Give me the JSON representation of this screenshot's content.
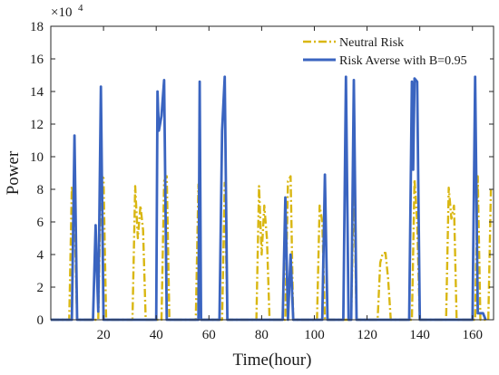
{
  "chart_data": {
    "type": "line",
    "xlabel": "Time(hour)",
    "ylabel": "Power",
    "y_multiplier_label": "×10",
    "y_multiplier_exp": "4",
    "xlim": [
      0,
      168
    ],
    "ylim": [
      0,
      18
    ],
    "xticks": [
      "20",
      "40",
      "60",
      "80",
      "100",
      "120",
      "140",
      "160"
    ],
    "yticks": [
      "0",
      "2",
      "4",
      "6",
      "8",
      "10",
      "12",
      "14",
      "16",
      "18"
    ],
    "xtick_values": [
      20,
      40,
      60,
      80,
      100,
      120,
      140,
      160
    ],
    "ytick_values": [
      0,
      2,
      4,
      6,
      8,
      10,
      12,
      14,
      16,
      18
    ],
    "grid": false,
    "legend_position": "top-right",
    "series": [
      {
        "name": "Neutral Risk",
        "color": "#d9b713",
        "style": "dash-dot",
        "points": [
          [
            0,
            0
          ],
          [
            7,
            0
          ],
          [
            8,
            8.2
          ],
          [
            9,
            6.5
          ],
          [
            10,
            0
          ],
          [
            18,
            0
          ],
          [
            19,
            8.8
          ],
          [
            20,
            8.7
          ],
          [
            21,
            0
          ],
          [
            31,
            0
          ],
          [
            32,
            8.2
          ],
          [
            33,
            5
          ],
          [
            34,
            7
          ],
          [
            35,
            5.5
          ],
          [
            36,
            0
          ],
          [
            42,
            0
          ],
          [
            43,
            8.5
          ],
          [
            44,
            8.8
          ],
          [
            45,
            0
          ],
          [
            55,
            0
          ],
          [
            56,
            8.3
          ],
          [
            57,
            0
          ],
          [
            65,
            0
          ],
          [
            66,
            8.4
          ],
          [
            67,
            0
          ],
          [
            78,
            0
          ],
          [
            79,
            8.2
          ],
          [
            80,
            4
          ],
          [
            81,
            7
          ],
          [
            82,
            5
          ],
          [
            83,
            0
          ],
          [
            89,
            0
          ],
          [
            90,
            8.5
          ],
          [
            91,
            8.8
          ],
          [
            92,
            0
          ],
          [
            101,
            0
          ],
          [
            102,
            7
          ],
          [
            103,
            6
          ],
          [
            104,
            0
          ],
          [
            114,
            0
          ],
          [
            115,
            8.8
          ],
          [
            116,
            0
          ],
          [
            124,
            0
          ],
          [
            125,
            3.5
          ],
          [
            126,
            4.1
          ],
          [
            127,
            4.1
          ],
          [
            128,
            2.5
          ],
          [
            129,
            0
          ],
          [
            137,
            0
          ],
          [
            138,
            8.6
          ],
          [
            139,
            6
          ],
          [
            140,
            0
          ],
          [
            150,
            0
          ],
          [
            151,
            8.1
          ],
          [
            152,
            6.2
          ],
          [
            153,
            7
          ],
          [
            154,
            0
          ],
          [
            161,
            0
          ],
          [
            162,
            8.8
          ],
          [
            163,
            0
          ],
          [
            166,
            0
          ],
          [
            167,
            8
          ]
        ]
      },
      {
        "name": "Risk Averse with B=0.95",
        "color": "#3a64c0",
        "style": "solid",
        "points": [
          [
            0,
            0
          ],
          [
            8,
            0
          ],
          [
            9,
            11.3
          ],
          [
            10,
            0
          ],
          [
            16,
            0
          ],
          [
            17,
            5.8
          ],
          [
            17.5,
            3
          ],
          [
            18,
            0.5
          ],
          [
            19,
            14.3
          ],
          [
            20,
            0
          ],
          [
            40,
            0
          ],
          [
            40.5,
            14
          ],
          [
            41,
            11.6
          ],
          [
            42,
            12.5
          ],
          [
            43,
            14.7
          ],
          [
            44,
            0
          ],
          [
            56,
            0
          ],
          [
            56.5,
            14.6
          ],
          [
            57,
            0
          ],
          [
            64,
            0
          ],
          [
            65,
            11.6
          ],
          [
            66,
            14.9
          ],
          [
            67,
            0
          ],
          [
            88,
            0
          ],
          [
            89,
            7.5
          ],
          [
            90,
            0
          ],
          [
            91,
            4
          ],
          [
            92,
            0
          ],
          [
            103,
            0
          ],
          [
            104,
            8.9
          ],
          [
            105,
            0
          ],
          [
            111,
            0
          ],
          [
            112,
            14.9
          ],
          [
            113,
            0
          ],
          [
            114,
            0
          ],
          [
            115,
            14.7
          ],
          [
            116,
            0
          ],
          [
            136,
            0
          ],
          [
            137,
            14.6
          ],
          [
            137.5,
            9.2
          ],
          [
            138,
            14.8
          ],
          [
            139,
            14.6
          ],
          [
            140,
            0
          ],
          [
            160,
            0
          ],
          [
            161,
            14.9
          ],
          [
            162,
            0.4
          ],
          [
            164,
            0.4
          ],
          [
            165,
            0
          ]
        ]
      }
    ]
  }
}
